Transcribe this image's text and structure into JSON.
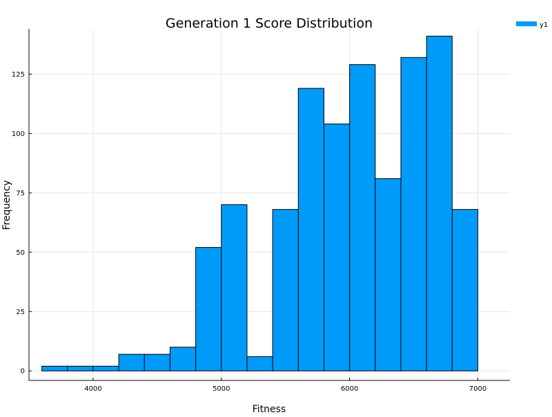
{
  "chart_data": {
    "type": "bar",
    "title": "Generation 1 Score Distribution",
    "xlabel": "Fitness",
    "ylabel": "Frequency",
    "legend": {
      "entries": [
        "y1"
      ],
      "placement": "top-right"
    },
    "bin_edges": [
      3600,
      3800,
      4000,
      4200,
      4400,
      4600,
      4800,
      5000,
      5200,
      5400,
      5600,
      5800,
      6000,
      6200,
      6400,
      6600,
      6800,
      7000
    ],
    "values": [
      2,
      2,
      2,
      7,
      7,
      10,
      52,
      70,
      6,
      68,
      119,
      104,
      129,
      81,
      132,
      141,
      68
    ],
    "xlim": [
      3500,
      7250
    ],
    "ylim": [
      -4,
      144
    ],
    "xticks": [
      4000,
      5000,
      6000,
      7000
    ],
    "xtick_labels": [
      "4000",
      "5000",
      "6000",
      "7000"
    ],
    "yticks": [
      0,
      25,
      50,
      75,
      100,
      125
    ],
    "ytick_labels": [
      "0",
      "25",
      "50",
      "75",
      "100",
      "125"
    ],
    "grid": true,
    "colors": {
      "bar_fill": "#009af9",
      "bar_stroke": "#000000",
      "grid": "#e6e6e6",
      "axis": "#000000"
    }
  }
}
